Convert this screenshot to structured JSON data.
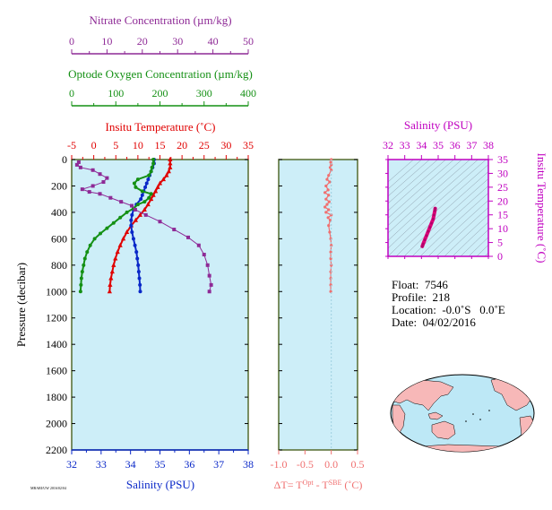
{
  "colors": {
    "nitrate": "#8e2a96",
    "oxygen": "#149014",
    "temperature": "#e00000",
    "salinity": "#0a28c8",
    "dt": "#f07070",
    "ts_axis": "#c000c0",
    "ts_line": "#e0007a",
    "panel_bg": "#cdeef8",
    "frame_dark": "#556b2f"
  },
  "chart_data": [
    {
      "type": "line",
      "panel": "profiles",
      "title": "",
      "ylabel": "Pressure (decibar)",
      "ylim": [
        2200,
        0
      ],
      "yticks": [
        "0",
        "200",
        "400",
        "600",
        "800",
        "1000",
        "1200",
        "1400",
        "1600",
        "1800",
        "2000",
        "2200"
      ],
      "axes": {
        "nitrate": {
          "label": "Nitrate Concentration (µm/kg)",
          "lim": [
            0,
            50
          ],
          "ticks": [
            "0",
            "10",
            "20",
            "30",
            "40",
            "50"
          ]
        },
        "oxygen": {
          "label": "Optode Oxygen Concentration (µm/kg)",
          "lim": [
            0,
            400
          ],
          "ticks": [
            "0",
            "100",
            "200",
            "300",
            "400"
          ]
        },
        "temperature": {
          "label": "Insitu Temperature (˚C)",
          "lim": [
            -5,
            35
          ],
          "ticks": [
            "-5",
            "0",
            "5",
            "10",
            "15",
            "20",
            "25",
            "30",
            "35"
          ]
        },
        "salinity": {
          "label": "Salinity (PSU)",
          "lim": [
            32,
            38
          ],
          "ticks": [
            "32",
            "33",
            "34",
            "35",
            "36",
            "37",
            "38"
          ]
        }
      },
      "series": [
        {
          "key": "temperature",
          "points": [
            [
              17.3,
              0
            ],
            [
              17.3,
              30
            ],
            [
              17.3,
              60
            ],
            [
              17.0,
              90
            ],
            [
              16.5,
              120
            ],
            [
              15.8,
              150
            ],
            [
              15.0,
              180
            ],
            [
              14.5,
              210
            ],
            [
              14.0,
              240
            ],
            [
              13.5,
              270
            ],
            [
              13.0,
              300
            ],
            [
              12.3,
              340
            ],
            [
              11.5,
              380
            ],
            [
              10.5,
              420
            ],
            [
              9.5,
              460
            ],
            [
              8.5,
              500
            ],
            [
              7.5,
              550
            ],
            [
              6.7,
              600
            ],
            [
              6.0,
              650
            ],
            [
              5.4,
              700
            ],
            [
              4.9,
              750
            ],
            [
              4.5,
              800
            ],
            [
              4.2,
              850
            ],
            [
              3.9,
              900
            ],
            [
              3.7,
              950
            ],
            [
              3.6,
              1000
            ]
          ]
        },
        {
          "key": "salinity",
          "points": [
            [
              34.8,
              0
            ],
            [
              34.8,
              30
            ],
            [
              34.75,
              60
            ],
            [
              34.7,
              90
            ],
            [
              34.65,
              120
            ],
            [
              34.6,
              150
            ],
            [
              34.55,
              180
            ],
            [
              34.5,
              210
            ],
            [
              34.45,
              240
            ],
            [
              34.4,
              270
            ],
            [
              34.35,
              300
            ],
            [
              34.2,
              340
            ],
            [
              34.1,
              380
            ],
            [
              34.05,
              420
            ],
            [
              34.02,
              460
            ],
            [
              34.02,
              500
            ],
            [
              34.05,
              550
            ],
            [
              34.1,
              600
            ],
            [
              34.15,
              650
            ],
            [
              34.2,
              700
            ],
            [
              34.23,
              750
            ],
            [
              34.26,
              800
            ],
            [
              34.28,
              850
            ],
            [
              34.3,
              900
            ],
            [
              34.32,
              950
            ],
            [
              34.33,
              1000
            ]
          ]
        },
        {
          "key": "oxygen",
          "points": [
            [
              185,
              0
            ],
            [
              185,
              30
            ],
            [
              182,
              60
            ],
            [
              180,
              90
            ],
            [
              175,
              120
            ],
            [
              150,
              150
            ],
            [
              142,
              180
            ],
            [
              145,
              210
            ],
            [
              160,
              240
            ],
            [
              180,
              260
            ],
            [
              175,
              290
            ],
            [
              165,
              320
            ],
            [
              150,
              340
            ],
            [
              140,
              370
            ],
            [
              125,
              400
            ],
            [
              110,
              440
            ],
            [
              95,
              480
            ],
            [
              80,
              520
            ],
            [
              65,
              560
            ],
            [
              52,
              600
            ],
            [
              42,
              650
            ],
            [
              35,
              700
            ],
            [
              30,
              750
            ],
            [
              27,
              800
            ],
            [
              24,
              850
            ],
            [
              22,
              900
            ],
            [
              21,
              950
            ],
            [
              20,
              1000
            ]
          ]
        },
        {
          "key": "nitrate",
          "points": [
            [
              2,
              20
            ],
            [
              1.5,
              40
            ],
            [
              2.5,
              60
            ],
            [
              6,
              80
            ],
            [
              8,
              110
            ],
            [
              10,
              140
            ],
            [
              9,
              170
            ],
            [
              6,
              200
            ],
            [
              3,
              225
            ],
            [
              5,
              245
            ],
            [
              8,
              260
            ],
            [
              11,
              290
            ],
            [
              14,
              320
            ],
            [
              17,
              350
            ],
            [
              18,
              380
            ],
            [
              21,
              420
            ],
            [
              25,
              470
            ],
            [
              29,
              530
            ],
            [
              33,
              590
            ],
            [
              36,
              650
            ],
            [
              37.5,
              720
            ],
            [
              38.5,
              800
            ],
            [
              39,
              880
            ],
            [
              39.5,
              950
            ],
            [
              39,
              1000
            ]
          ]
        }
      ]
    },
    {
      "type": "line",
      "panel": "delta-t",
      "xlabel_main": "ΔT= T",
      "xlabel_sup1": "Opt",
      "xlabel_mid": " - T",
      "xlabel_sup2": "SBE",
      "xlabel_tail": " (˚C)",
      "xlim": [
        -1.0,
        0.5
      ],
      "xticks": [
        "-1.0",
        "-0.5",
        "0.0",
        "0.5"
      ],
      "ylim": [
        2200,
        0
      ],
      "points": [
        [
          0.0,
          0
        ],
        [
          -0.01,
          20
        ],
        [
          0.0,
          40
        ],
        [
          -0.02,
          60
        ],
        [
          0.0,
          80
        ],
        [
          -0.05,
          120
        ],
        [
          -0.08,
          150
        ],
        [
          -0.03,
          170
        ],
        [
          -0.1,
          200
        ],
        [
          -0.06,
          230
        ],
        [
          -0.12,
          250
        ],
        [
          -0.05,
          270
        ],
        [
          -0.1,
          300
        ],
        [
          -0.04,
          320
        ],
        [
          -0.08,
          340
        ],
        [
          -0.12,
          360
        ],
        [
          -0.05,
          380
        ],
        [
          -0.1,
          400
        ],
        [
          0.0,
          420
        ],
        [
          -0.06,
          440
        ],
        [
          -0.02,
          460
        ],
        [
          -0.05,
          500
        ],
        [
          -0.03,
          550
        ],
        [
          -0.01,
          600
        ],
        [
          0.0,
          650
        ],
        [
          -0.01,
          700
        ],
        [
          -0.01,
          750
        ],
        [
          0.0,
          800
        ],
        [
          -0.01,
          850
        ],
        [
          -0.01,
          900
        ],
        [
          -0.01,
          950
        ],
        [
          -0.01,
          1000
        ]
      ]
    },
    {
      "type": "line",
      "panel": "ts-diagram",
      "title": "Salinity (PSU)",
      "ylabel": "Insitu Temperature (˚C)",
      "xlim": [
        32,
        38
      ],
      "xticks": [
        "32",
        "33",
        "34",
        "35",
        "36",
        "37",
        "38"
      ],
      "ylim": [
        0,
        35
      ],
      "yticks": [
        "0",
        "5",
        "10",
        "15",
        "20",
        "25",
        "30",
        "35"
      ],
      "points": [
        [
          34.05,
          3.6
        ],
        [
          34.1,
          4.5
        ],
        [
          34.2,
          6.0
        ],
        [
          34.3,
          7.5
        ],
        [
          34.4,
          9.0
        ],
        [
          34.5,
          10.5
        ],
        [
          34.6,
          12.0
        ],
        [
          34.7,
          13.5
        ],
        [
          34.75,
          15.0
        ],
        [
          34.8,
          16.5
        ],
        [
          34.82,
          17.3
        ]
      ]
    }
  ],
  "info": {
    "float": "Float:  7546",
    "profile": "Profile:  218",
    "location": "Location:  -0.0˚S   0.0˚E",
    "date": "Date:  04/02/2016"
  },
  "watermark": "MBARI/UW 2016/02/04"
}
